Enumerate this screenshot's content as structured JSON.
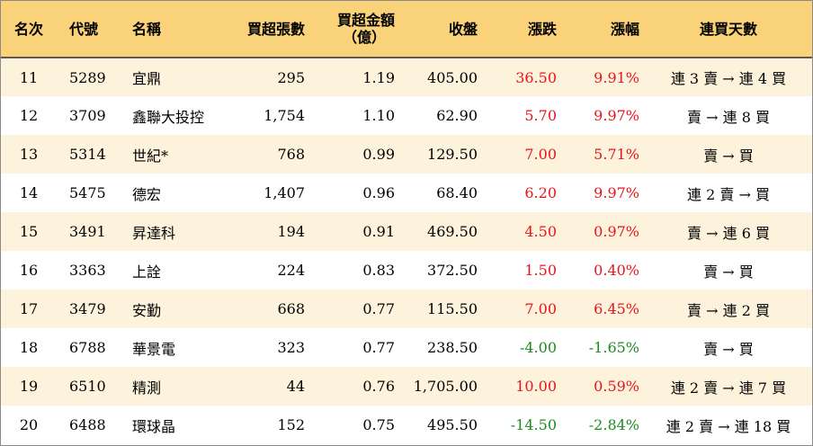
{
  "headers": {
    "rank": "名次",
    "code": "代號",
    "name": "名稱",
    "net_buy_lots": "買超張數",
    "net_buy_amount_line1": "買超金額",
    "net_buy_amount_line2": "（億）",
    "close": "收盤",
    "change": "漲跌",
    "change_pct": "漲幅",
    "streak": "連買天數"
  },
  "colors": {
    "header_bg": "#f9d27a",
    "stripe_bg": "#fdf3dc",
    "up": "#e8141b",
    "down": "#1f8a1f"
  },
  "rows": [
    {
      "rank": "11",
      "code": "5289",
      "name": "宜鼎",
      "lots": "295",
      "amount": "1.19",
      "close": "405.00",
      "change": "36.50",
      "pct": "9.91%",
      "dir": "up",
      "streak": "連 3 賣 → 連 4 買"
    },
    {
      "rank": "12",
      "code": "3709",
      "name": "鑫聯大投控",
      "lots": "1,754",
      "amount": "1.10",
      "close": "62.90",
      "change": "5.70",
      "pct": "9.97%",
      "dir": "up",
      "streak": "賣 → 連 8 買"
    },
    {
      "rank": "13",
      "code": "5314",
      "name": "世紀*",
      "lots": "768",
      "amount": "0.99",
      "close": "129.50",
      "change": "7.00",
      "pct": "5.71%",
      "dir": "up",
      "streak": "賣 → 買"
    },
    {
      "rank": "14",
      "code": "5475",
      "name": "德宏",
      "lots": "1,407",
      "amount": "0.96",
      "close": "68.40",
      "change": "6.20",
      "pct": "9.97%",
      "dir": "up",
      "streak": "連 2 賣 → 買"
    },
    {
      "rank": "15",
      "code": "3491",
      "name": "昇達科",
      "lots": "194",
      "amount": "0.91",
      "close": "469.50",
      "change": "4.50",
      "pct": "0.97%",
      "dir": "up",
      "streak": "賣 → 連 6 買"
    },
    {
      "rank": "16",
      "code": "3363",
      "name": "上詮",
      "lots": "224",
      "amount": "0.83",
      "close": "372.50",
      "change": "1.50",
      "pct": "0.40%",
      "dir": "up",
      "streak": "賣 → 買"
    },
    {
      "rank": "17",
      "code": "3479",
      "name": "安勤",
      "lots": "668",
      "amount": "0.77",
      "close": "115.50",
      "change": "7.00",
      "pct": "6.45%",
      "dir": "up",
      "streak": "賣 → 連 2 買"
    },
    {
      "rank": "18",
      "code": "6788",
      "name": "華景電",
      "lots": "323",
      "amount": "0.77",
      "close": "238.50",
      "change": "-4.00",
      "pct": "-1.65%",
      "dir": "down",
      "streak": "賣 → 買"
    },
    {
      "rank": "19",
      "code": "6510",
      "name": "精測",
      "lots": "44",
      "amount": "0.76",
      "close": "1,705.00",
      "change": "10.00",
      "pct": "0.59%",
      "dir": "up",
      "streak": "連 2 賣 → 連 7 買"
    },
    {
      "rank": "20",
      "code": "6488",
      "name": "環球晶",
      "lots": "152",
      "amount": "0.75",
      "close": "495.50",
      "change": "-14.50",
      "pct": "-2.84%",
      "dir": "down",
      "streak": "連 2 賣 → 連 18 買"
    }
  ]
}
